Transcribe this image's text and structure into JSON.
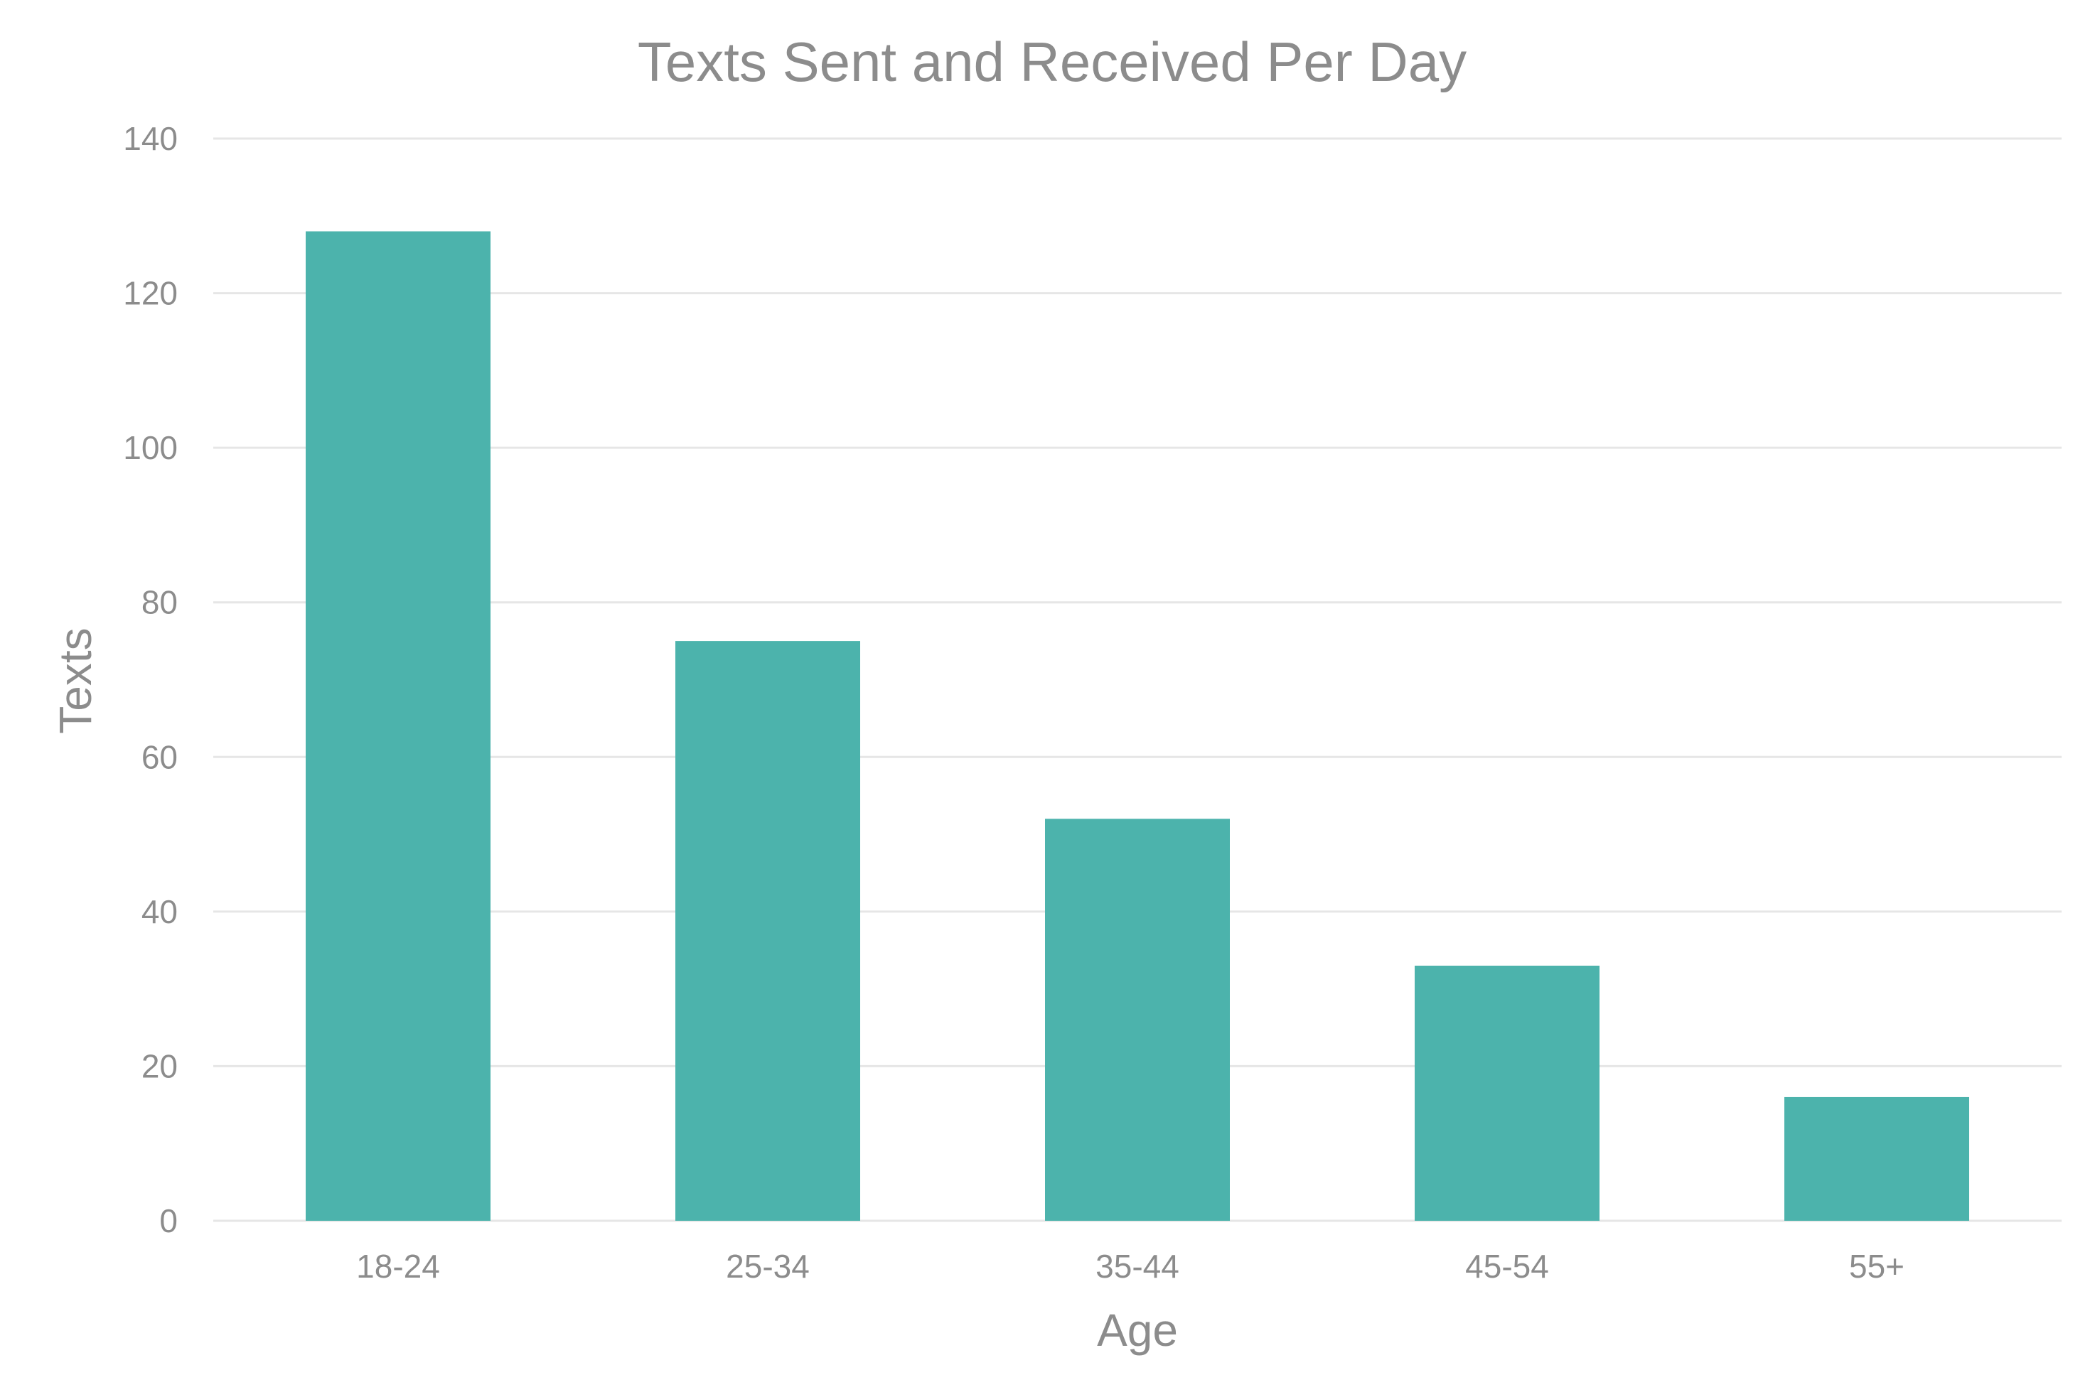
{
  "chart_data": {
    "type": "bar",
    "title": "Texts Sent and Received Per Day",
    "xlabel": "Age",
    "ylabel": "Texts",
    "categories": [
      "18-24",
      "25-34",
      "35-44",
      "45-54",
      "55+"
    ],
    "values": [
      128,
      75,
      52,
      33,
      16
    ],
    "ylim": [
      0,
      140
    ],
    "yticks": [
      0,
      20,
      40,
      60,
      80,
      100,
      120,
      140
    ],
    "grid": true,
    "legend": "none",
    "bar_color": "#4cb3ac"
  }
}
